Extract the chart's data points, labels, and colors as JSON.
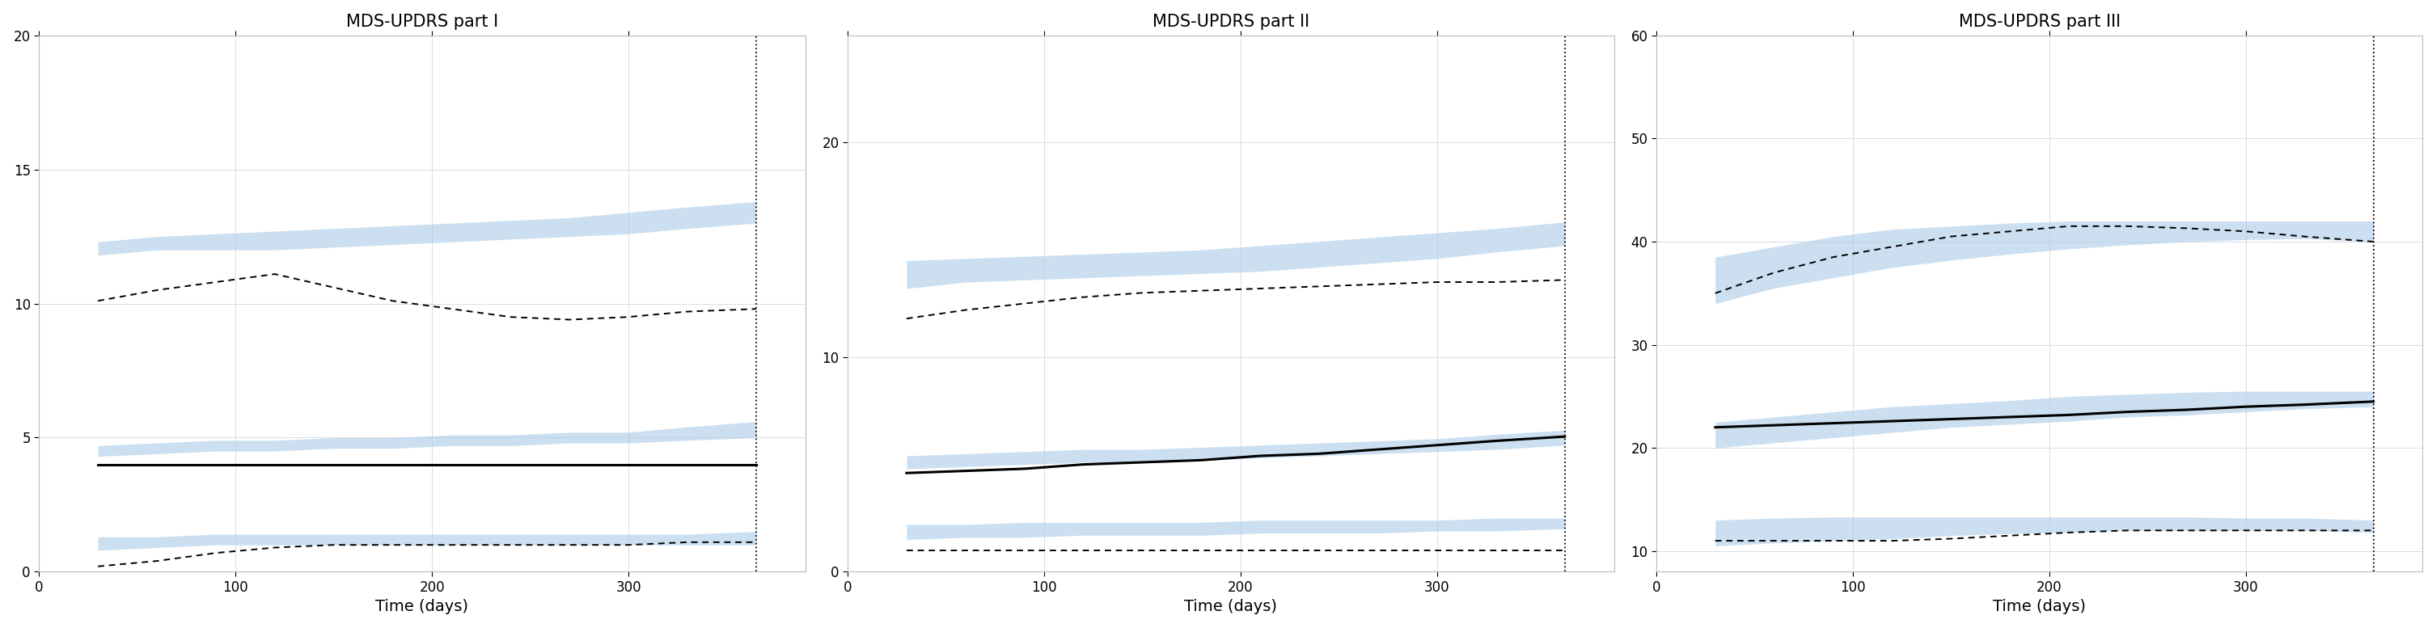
{
  "panels": [
    {
      "title": "MDS-UPDRS part I",
      "xlabel": "Time (days)",
      "ylim": [
        0,
        20
      ],
      "yticks": [
        0,
        5,
        10,
        15,
        20
      ],
      "xlim": [
        0,
        390
      ],
      "xticks": [
        0,
        100,
        200,
        300
      ],
      "vline_x": 365,
      "time": [
        30,
        60,
        90,
        120,
        150,
        180,
        210,
        240,
        270,
        300,
        330,
        365
      ],
      "p95_lo": [
        11.8,
        12.0,
        12.0,
        12.0,
        12.1,
        12.2,
        12.3,
        12.4,
        12.5,
        12.6,
        12.8,
        13.0
      ],
      "p95_hi": [
        12.3,
        12.5,
        12.6,
        12.7,
        12.8,
        12.9,
        13.0,
        13.1,
        13.2,
        13.4,
        13.6,
        13.8
      ],
      "p50_lo": [
        4.3,
        4.4,
        4.5,
        4.5,
        4.6,
        4.6,
        4.7,
        4.7,
        4.8,
        4.8,
        4.9,
        5.0
      ],
      "p50_hi": [
        4.7,
        4.8,
        4.9,
        4.9,
        5.0,
        5.0,
        5.1,
        5.1,
        5.2,
        5.2,
        5.4,
        5.6
      ],
      "p05_lo": [
        0.8,
        0.9,
        1.0,
        1.0,
        1.0,
        1.0,
        1.0,
        1.0,
        1.0,
        1.0,
        1.0,
        1.0
      ],
      "p05_hi": [
        1.3,
        1.3,
        1.4,
        1.4,
        1.4,
        1.4,
        1.4,
        1.4,
        1.4,
        1.4,
        1.4,
        1.5
      ],
      "obs_p95": [
        10.1,
        10.5,
        10.8,
        11.1,
        10.6,
        10.1,
        9.8,
        9.5,
        9.4,
        9.5,
        9.7,
        9.8
      ],
      "obs_p50": [
        4.0,
        4.0,
        4.0,
        4.0,
        4.0,
        4.0,
        4.0,
        4.0,
        4.0,
        4.0,
        4.0,
        4.0
      ],
      "obs_p05": [
        0.2,
        0.4,
        0.7,
        0.9,
        1.0,
        1.0,
        1.0,
        1.0,
        1.0,
        1.0,
        1.1,
        1.1
      ]
    },
    {
      "title": "MDS-UPDRS part II",
      "xlabel": "Time (days)",
      "ylim": [
        0,
        25
      ],
      "yticks": [
        0,
        10,
        20
      ],
      "xlim": [
        0,
        390
      ],
      "xticks": [
        0,
        100,
        200,
        300
      ],
      "vline_x": 365,
      "time": [
        30,
        60,
        90,
        120,
        150,
        180,
        210,
        240,
        270,
        300,
        330,
        365
      ],
      "p95_lo": [
        13.2,
        13.5,
        13.6,
        13.7,
        13.8,
        13.9,
        14.0,
        14.2,
        14.4,
        14.6,
        14.9,
        15.2
      ],
      "p95_hi": [
        14.5,
        14.6,
        14.7,
        14.8,
        14.9,
        15.0,
        15.2,
        15.4,
        15.6,
        15.8,
        16.0,
        16.3
      ],
      "p50_lo": [
        4.8,
        4.9,
        5.0,
        5.1,
        5.1,
        5.2,
        5.3,
        5.4,
        5.5,
        5.6,
        5.7,
        5.9
      ],
      "p50_hi": [
        5.4,
        5.5,
        5.6,
        5.7,
        5.7,
        5.8,
        5.9,
        6.0,
        6.1,
        6.2,
        6.4,
        6.6
      ],
      "p05_lo": [
        1.5,
        1.6,
        1.6,
        1.7,
        1.7,
        1.7,
        1.8,
        1.8,
        1.8,
        1.9,
        1.9,
        2.0
      ],
      "p05_hi": [
        2.2,
        2.2,
        2.3,
        2.3,
        2.3,
        2.3,
        2.4,
        2.4,
        2.4,
        2.4,
        2.5,
        2.5
      ],
      "obs_p95": [
        11.8,
        12.2,
        12.5,
        12.8,
        13.0,
        13.1,
        13.2,
        13.3,
        13.4,
        13.5,
        13.5,
        13.6
      ],
      "obs_p50": [
        4.6,
        4.7,
        4.8,
        5.0,
        5.1,
        5.2,
        5.4,
        5.5,
        5.7,
        5.9,
        6.1,
        6.3
      ],
      "obs_p05": [
        1.0,
        1.0,
        1.0,
        1.0,
        1.0,
        1.0,
        1.0,
        1.0,
        1.0,
        1.0,
        1.0,
        1.0
      ]
    },
    {
      "title": "MDS-UPDRS part III",
      "xlabel": "Time (days)",
      "ylim": [
        8,
        60
      ],
      "yticks": [
        10,
        20,
        30,
        40,
        50,
        60
      ],
      "xlim": [
        0,
        390
      ],
      "xticks": [
        0,
        100,
        200,
        300
      ],
      "vline_x": 365,
      "time": [
        30,
        60,
        90,
        120,
        150,
        180,
        210,
        240,
        270,
        300,
        330,
        365
      ],
      "p95_lo": [
        34.0,
        35.5,
        36.5,
        37.5,
        38.2,
        38.8,
        39.3,
        39.7,
        40.0,
        40.2,
        40.3,
        40.0
      ],
      "p95_hi": [
        38.5,
        39.5,
        40.5,
        41.2,
        41.5,
        41.8,
        42.0,
        42.0,
        42.0,
        42.0,
        42.0,
        42.0
      ],
      "p50_lo": [
        20.0,
        20.5,
        21.0,
        21.5,
        22.0,
        22.3,
        22.6,
        23.0,
        23.2,
        23.5,
        23.8,
        24.0
      ],
      "p50_hi": [
        22.5,
        23.0,
        23.5,
        24.0,
        24.3,
        24.6,
        25.0,
        25.2,
        25.4,
        25.5,
        25.5,
        25.5
      ],
      "p05_lo": [
        10.5,
        10.8,
        11.0,
        11.2,
        11.5,
        11.7,
        11.8,
        12.0,
        12.0,
        12.0,
        12.0,
        11.8
      ],
      "p05_hi": [
        13.0,
        13.2,
        13.3,
        13.3,
        13.3,
        13.3,
        13.3,
        13.3,
        13.3,
        13.2,
        13.2,
        13.0
      ],
      "obs_p95": [
        35.0,
        37.0,
        38.5,
        39.5,
        40.5,
        41.0,
        41.5,
        41.5,
        41.3,
        41.0,
        40.5,
        40.0
      ],
      "obs_p50": [
        22.0,
        22.2,
        22.4,
        22.6,
        22.8,
        23.0,
        23.2,
        23.5,
        23.7,
        24.0,
        24.2,
        24.5
      ],
      "obs_p05": [
        11.0,
        11.0,
        11.0,
        11.0,
        11.2,
        11.5,
        11.8,
        12.0,
        12.0,
        12.0,
        12.0,
        12.0
      ]
    }
  ],
  "band_color": "#b0cfe8",
  "band_alpha": 0.65,
  "obs_color": "black",
  "grid_color": "#d5dde5",
  "vline_color": "black",
  "bg_color": "white",
  "title_fontsize": 15,
  "label_fontsize": 14,
  "tick_fontsize": 12
}
